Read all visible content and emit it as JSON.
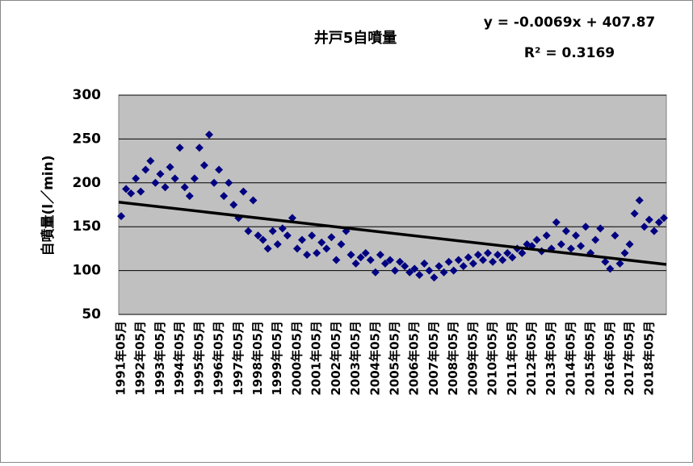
{
  "chart_data": {
    "type": "scatter",
    "title": "井戸5自噴量",
    "annotations": [
      "y = -0.0069x + 407.87",
      "R² = 0.3169"
    ],
    "y_label": "自噴量(l／min)",
    "categories": [
      "1991年05月",
      null,
      null,
      null,
      "1992年05月",
      null,
      null,
      null,
      "1993年05月",
      null,
      null,
      null,
      "1994年05月",
      null,
      null,
      null,
      "1995年05月",
      null,
      null,
      null,
      "1996年05月",
      null,
      null,
      null,
      "1997年05月",
      null,
      null,
      null,
      "1998年05月",
      null,
      null,
      null,
      "1999年05月",
      null,
      null,
      null,
      "2000年05月",
      null,
      null,
      null,
      "2001年05月",
      null,
      null,
      null,
      "2002年05月",
      null,
      null,
      null,
      "2003年05月",
      null,
      null,
      null,
      "2004年05月",
      null,
      null,
      null,
      "2005年05月",
      null,
      null,
      null,
      "2006年05月",
      null,
      null,
      null,
      "2007年05月",
      null,
      null,
      null,
      "2008年05月",
      null,
      null,
      null,
      "2009年05月",
      null,
      null,
      null,
      "2010年05月",
      null,
      null,
      null,
      "2011年05月",
      null,
      null,
      null,
      "2012年05月",
      null,
      null,
      null,
      "2013年05月",
      null,
      null,
      null,
      "2014年05月",
      null,
      null,
      null,
      "2015年05月",
      null,
      null,
      null,
      "2016年05月",
      null,
      null,
      null,
      "2017年05月",
      null,
      null,
      null,
      "2018年05月",
      null,
      null,
      null
    ],
    "values": [
      162,
      193,
      188,
      205,
      190,
      215,
      225,
      200,
      210,
      195,
      218,
      205,
      240,
      195,
      185,
      205,
      240,
      220,
      255,
      200,
      215,
      185,
      200,
      175,
      160,
      190,
      145,
      180,
      140,
      135,
      125,
      145,
      130,
      148,
      140,
      160,
      125,
      135,
      118,
      140,
      120,
      132,
      125,
      138,
      112,
      130,
      145,
      118,
      108,
      115,
      120,
      112,
      98,
      118,
      108,
      112,
      100,
      110,
      105,
      98,
      102,
      95,
      108,
      100,
      92,
      105,
      98,
      110,
      100,
      112,
      105,
      115,
      108,
      118,
      112,
      120,
      110,
      118,
      112,
      120,
      115,
      125,
      120,
      130,
      128,
      135,
      122,
      140,
      125,
      155,
      130,
      145,
      125,
      140,
      128,
      150,
      120,
      135,
      148,
      110,
      102,
      140,
      108,
      120,
      130,
      165,
      180,
      150,
      158,
      145,
      155,
      160
    ],
    "color": "#000080",
    "trendline": {
      "values": [
        178,
        107
      ],
      "color": "#000000"
    },
    "ylim": [
      50,
      300
    ],
    "yticks": [
      50,
      100,
      150,
      200,
      250,
      300
    ],
    "grid": true,
    "plot_color": "#c0c0c0"
  }
}
